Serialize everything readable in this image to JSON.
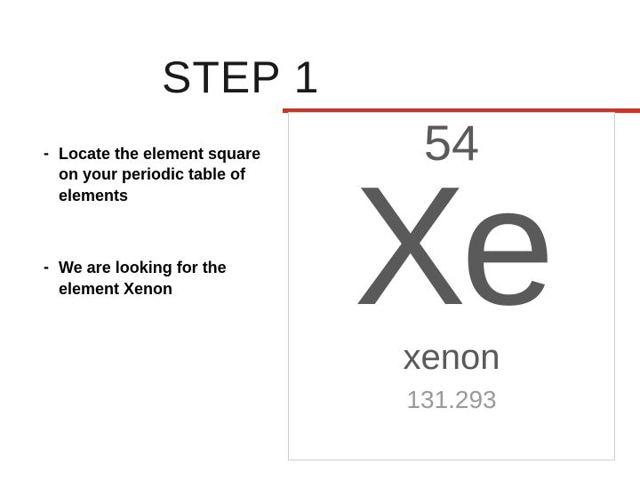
{
  "title": "STEP 1",
  "accent_color": "#c0392b",
  "bullets": [
    {
      "text": "Locate the element square on your periodic table of elements"
    },
    {
      "text": "We are looking for the element Xenon"
    }
  ],
  "element": {
    "atomic_number": "54",
    "symbol": "Xe",
    "name": "xenon",
    "atomic_mass": "131.293",
    "text_color": "#5a5a5a",
    "mass_color": "#9a9a9a",
    "border_color": "#d0d0d0"
  }
}
